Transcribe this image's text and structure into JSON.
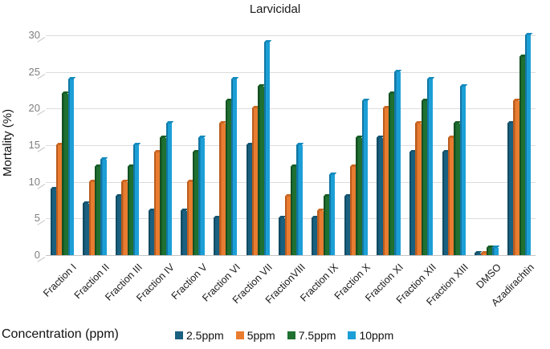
{
  "figure": {
    "title": "Larvicidal"
  },
  "legend": {
    "title": "Concentration (ppm)"
  },
  "chart_data": {
    "type": "bar",
    "title": "Larvicidal",
    "xlabel": "",
    "ylabel": "Mortality (%)",
    "ylim": [
      0,
      30
    ],
    "yticks": [
      0,
      5,
      10,
      15,
      20,
      25,
      30
    ],
    "grid": true,
    "legend_position": "bottom",
    "legend_title": "Concentration (ppm)",
    "categories": [
      "Fraction I",
      "Fraction II",
      "Fraction III",
      "Fraction IV",
      "Fraction V",
      "Fraction VI",
      "Fraction VII",
      "FractionVIII",
      "Fraction IX",
      "Fraction X",
      "Fraction XI",
      "Fraction XII",
      "Fraction XIII",
      "DMSO",
      "Azadirachtin"
    ],
    "series": [
      {
        "name": "2.5ppm",
        "color": "#1A6080",
        "edge_color": "#114B63",
        "cap_color": "#155571",
        "values": [
          9,
          7,
          8,
          6,
          6,
          5,
          15,
          5,
          5,
          8,
          16,
          14,
          14,
          0.2,
          18
        ]
      },
      {
        "name": "5ppm",
        "color": "#E87C30",
        "edge_color": "#BA5C1E",
        "cap_color": "#CC6722",
        "values": [
          15,
          10,
          10,
          14,
          10,
          18,
          20,
          8,
          6,
          12,
          20,
          18,
          16,
          0.2,
          21
        ]
      },
      {
        "name": "7.5ppm",
        "color": "#1F7031",
        "edge_color": "#145021",
        "cap_color": "#185E27",
        "values": [
          22,
          12,
          12,
          16,
          14,
          21,
          23,
          12,
          8,
          16,
          22,
          21,
          18,
          1,
          27
        ]
      },
      {
        "name": "10ppm",
        "color": "#1C9FD6",
        "edge_color": "#1276A2",
        "cap_color": "#158AbD",
        "values": [
          24,
          13,
          15,
          18,
          16,
          24,
          29,
          15,
          11,
          21,
          25,
          24,
          23,
          1,
          30
        ]
      }
    ]
  }
}
